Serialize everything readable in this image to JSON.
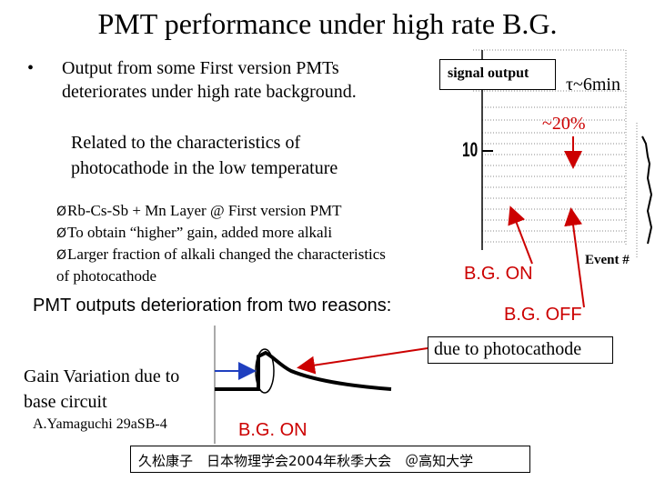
{
  "title": "PMT performance under high rate B.G.",
  "bullet": {
    "marker": "•",
    "line1": "Output from some First version PMTs",
    "line2": "deteriorates under high rate background."
  },
  "related": {
    "line1": "Related to the characteristics of",
    "line2": "photocathode in the low temperature"
  },
  "arrow_items": [
    "Rb-Cs-Sb + Mn Layer @ First version PMT",
    "To obtain “higher” gain, added more alkali",
    "Larger fraction of alkali changed the characteristics"
  ],
  "arrow_item_3_continued": "of photocathode",
  "arrow_glyph": "Ø",
  "reasons_heading": "PMT outputs deterioration from two reasons:",
  "gain_variation": {
    "line1": "Gain Variation due to",
    "line2": "base circuit"
  },
  "author_ref": "A.Yamaguchi 29aSB-4",
  "bg_on_bottom": "B.G. ON",
  "footer": "久松康子　日本物理学会2004年秋季大会　＠高知大学",
  "plot_panel": {
    "signal_label": "signal output",
    "tau": "τ~6min",
    "percent": "~20%",
    "tick_label": "10",
    "bg_on": "B.G. ON",
    "event_label": "Event #",
    "bg_off": "B.G. OFF"
  },
  "photocathode_label": "due to photocathode",
  "colors": {
    "accent_red": "#cc0000",
    "text": "#000000",
    "grid": "#888888"
  }
}
